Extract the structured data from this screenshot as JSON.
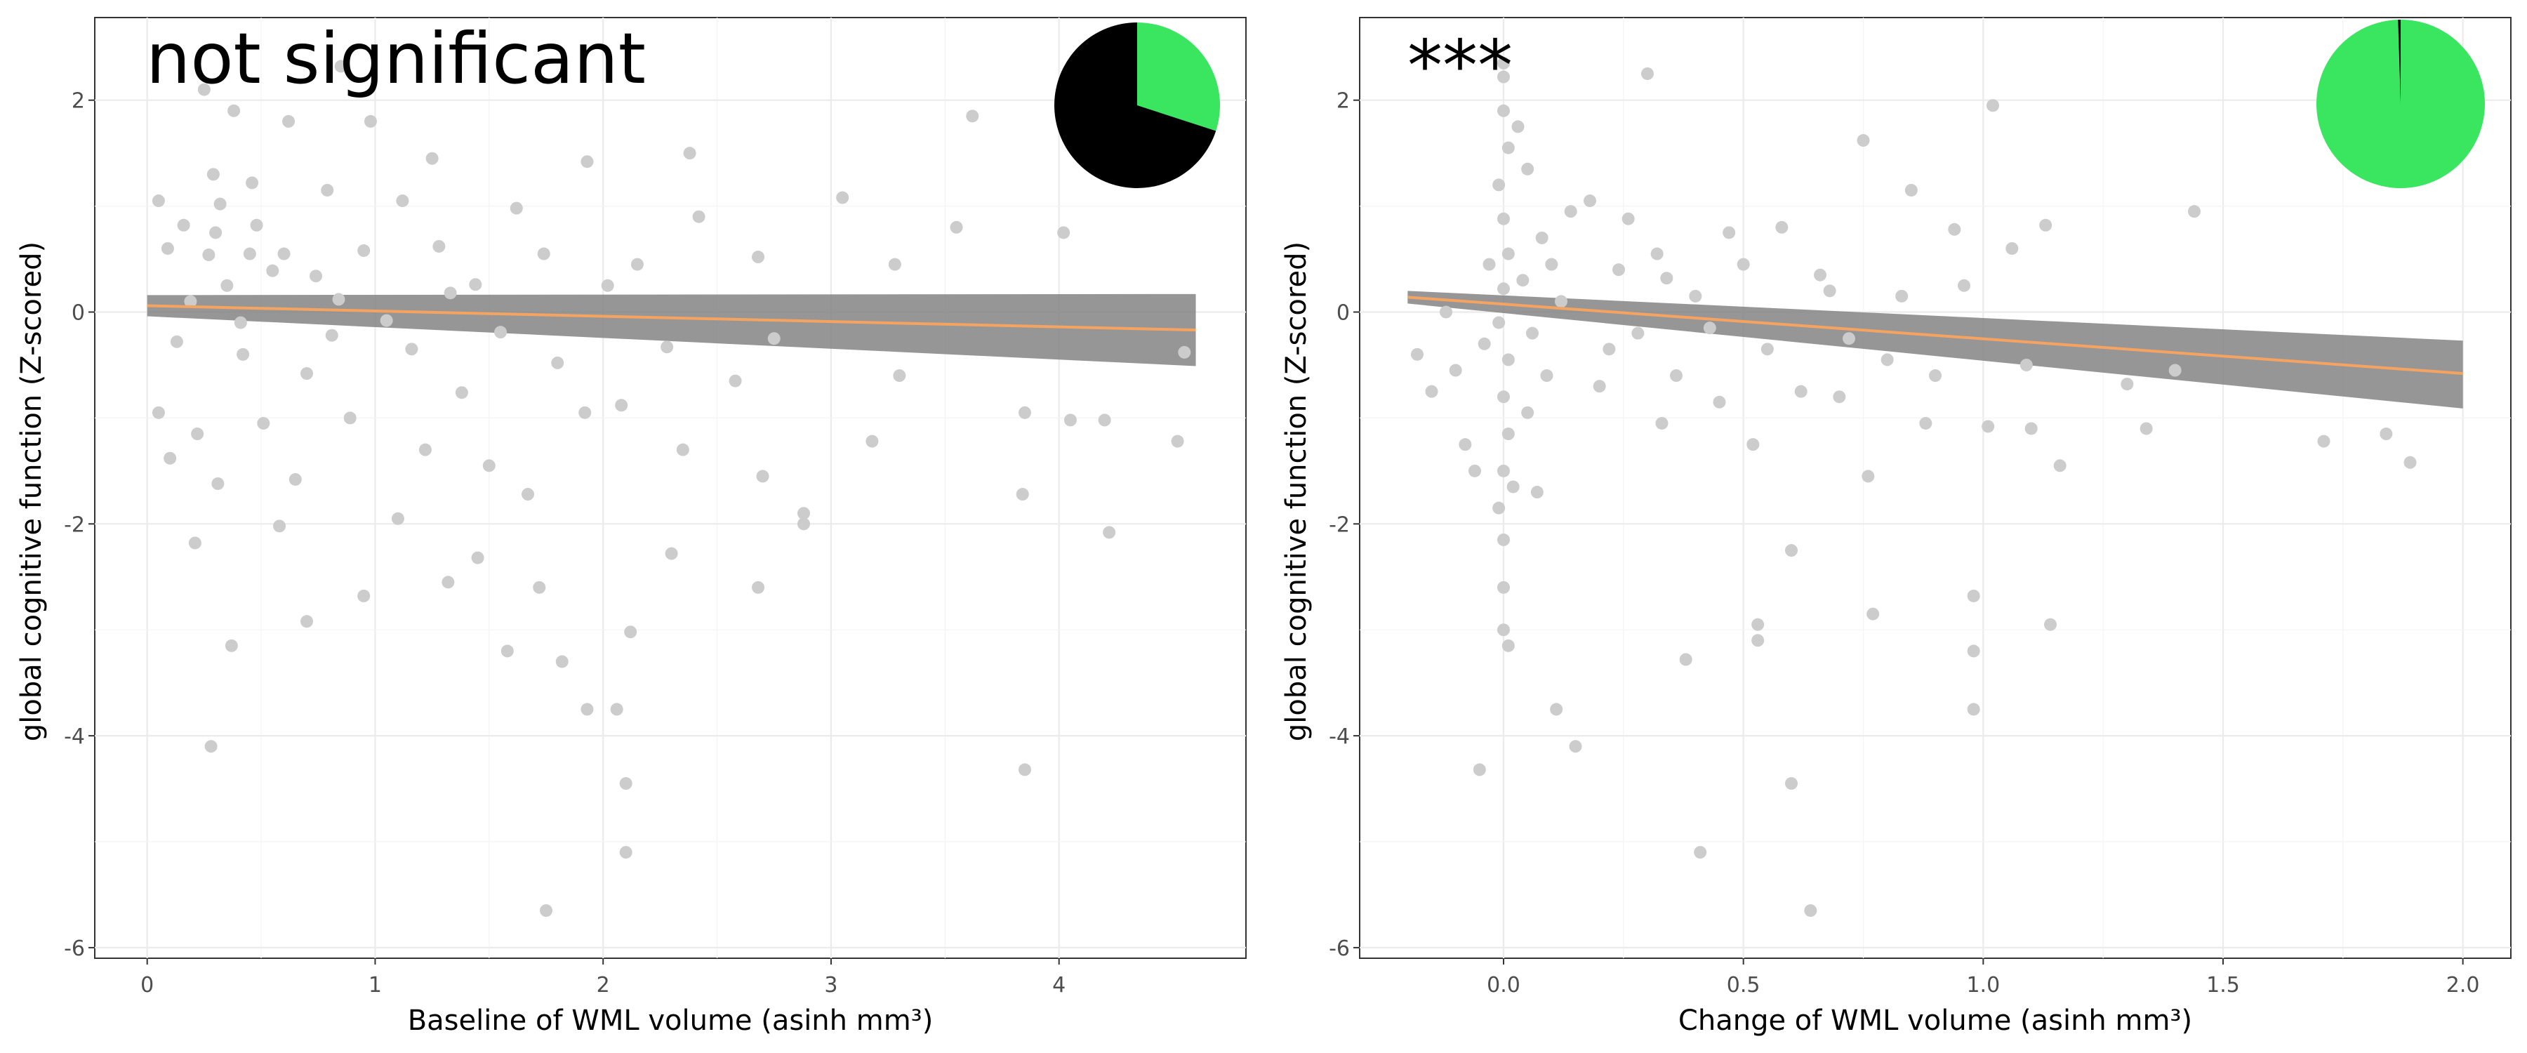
{
  "chart_data": [
    {
      "type": "scatter",
      "annotation": "not significant",
      "xlabel": "Baseline of WML volume (asinh mm³)",
      "ylabel": "global cognitive function (Z-scored)",
      "xlim": [
        -0.23,
        4.82
      ],
      "ylim": [
        -6.1,
        2.78
      ],
      "x_ticks": [
        0,
        1,
        2,
        3,
        4
      ],
      "x_tick_labels": [
        "0",
        "1",
        "2",
        "3",
        "4"
      ],
      "y_ticks": [
        -6,
        -4,
        -2,
        0,
        2
      ],
      "y_tick_labels": [
        "-6",
        "-4",
        "-2",
        "0",
        "2"
      ],
      "grid": true,
      "colors": {
        "points": "#cccccc",
        "fit_line": "#f4a460",
        "ribbon": "#7f7f7f",
        "pie_significant": "#3ae560",
        "pie_rest": "#000000"
      },
      "fit": {
        "x": [
          0,
          4.6
        ],
        "y": [
          0.06,
          -0.17
        ],
        "ci_lower": [
          -0.04,
          -0.51
        ],
        "ci_upper": [
          0.16,
          0.17
        ]
      },
      "pie": {
        "slices": [
          {
            "fraction": 0.3,
            "color": "#3ae560"
          },
          {
            "fraction": 0.7,
            "color": "#000000"
          }
        ]
      },
      "points": [
        [
          0.38,
          1.9
        ],
        [
          0.29,
          1.3
        ],
        [
          0.62,
          1.8
        ],
        [
          0.16,
          0.82
        ],
        [
          0.46,
          1.22
        ],
        [
          0.79,
          1.15
        ],
        [
          0.27,
          0.54
        ],
        [
          0.55,
          0.39
        ],
        [
          0.84,
          0.12
        ],
        [
          0.13,
          -0.28
        ],
        [
          0.42,
          -0.4
        ],
        [
          0.7,
          -0.58
        ],
        [
          0.22,
          -1.15
        ],
        [
          0.51,
          -1.05
        ],
        [
          0.89,
          -1.0
        ],
        [
          0.31,
          -1.62
        ],
        [
          0.65,
          -1.58
        ],
        [
          0.98,
          1.8
        ],
        [
          1.12,
          1.05
        ],
        [
          1.28,
          0.62
        ],
        [
          1.44,
          0.26
        ],
        [
          1.16,
          -0.35
        ],
        [
          1.38,
          -0.76
        ],
        [
          1.22,
          -1.3
        ],
        [
          1.5,
          -1.45
        ],
        [
          1.62,
          0.98
        ],
        [
          1.74,
          0.55
        ],
        [
          1.55,
          -0.19
        ],
        [
          1.8,
          -0.48
        ],
        [
          1.92,
          -0.95
        ],
        [
          1.67,
          -1.72
        ],
        [
          2.02,
          0.25
        ],
        [
          2.15,
          0.45
        ],
        [
          2.28,
          -0.33
        ],
        [
          2.08,
          -0.88
        ],
        [
          2.35,
          -1.3
        ],
        [
          2.42,
          0.9
        ],
        [
          1.93,
          1.42
        ],
        [
          2.58,
          -0.65
        ],
        [
          2.68,
          0.52
        ],
        [
          2.75,
          -0.25
        ],
        [
          2.7,
          -1.55
        ],
        [
          3.05,
          1.08
        ],
        [
          3.18,
          -1.22
        ],
        [
          3.28,
          0.45
        ],
        [
          3.3,
          -0.6
        ],
        [
          3.55,
          0.8
        ],
        [
          3.62,
          1.85
        ],
        [
          3.85,
          -0.95
        ],
        [
          3.84,
          -1.72
        ],
        [
          3.85,
          -4.32
        ],
        [
          4.02,
          0.75
        ],
        [
          4.05,
          -1.02
        ],
        [
          4.2,
          -1.02
        ],
        [
          4.22,
          -2.08
        ],
        [
          4.52,
          -1.22
        ],
        [
          4.55,
          -0.38
        ],
        [
          0.28,
          -4.1
        ],
        [
          0.37,
          -3.15
        ],
        [
          0.7,
          -2.92
        ],
        [
          1.75,
          -5.65
        ],
        [
          2.1,
          -5.1
        ],
        [
          2.1,
          -4.45
        ],
        [
          2.06,
          -3.75
        ],
        [
          2.12,
          -3.02
        ],
        [
          1.82,
          -3.3
        ],
        [
          1.93,
          -3.75
        ],
        [
          1.58,
          -3.2
        ],
        [
          0.95,
          -2.68
        ],
        [
          1.72,
          -2.6
        ],
        [
          2.88,
          -2.0
        ],
        [
          2.88,
          -1.9
        ],
        [
          2.68,
          -2.6
        ],
        [
          2.3,
          -2.28
        ],
        [
          1.45,
          -2.32
        ],
        [
          1.32,
          -2.55
        ],
        [
          0.21,
          -2.18
        ],
        [
          0.58,
          -2.02
        ],
        [
          1.1,
          -1.95
        ],
        [
          0.32,
          1.02
        ],
        [
          0.48,
          0.82
        ],
        [
          0.6,
          0.55
        ],
        [
          0.35,
          0.25
        ],
        [
          0.19,
          0.1
        ],
        [
          0.41,
          -0.1
        ],
        [
          0.74,
          0.34
        ],
        [
          0.95,
          0.58
        ],
        [
          1.05,
          -0.08
        ],
        [
          0.81,
          -0.22
        ],
        [
          1.33,
          0.18
        ],
        [
          0.25,
          2.1
        ],
        [
          0.85,
          2.32
        ],
        [
          0.05,
          1.05
        ],
        [
          0.09,
          0.6
        ],
        [
          0.05,
          -0.95
        ],
        [
          0.1,
          -1.38
        ],
        [
          1.25,
          1.45
        ],
        [
          2.38,
          1.5
        ],
        [
          0.45,
          0.55
        ],
        [
          0.3,
          0.75
        ]
      ]
    },
    {
      "type": "scatter",
      "annotation": "***",
      "xlabel": "Change of WML volume (asinh mm³)",
      "ylabel": "global cognitive function (Z-scored)",
      "xlim": [
        -0.3,
        2.1
      ],
      "ylim": [
        -6.1,
        2.78
      ],
      "x_ticks": [
        0.0,
        0.5,
        1.0,
        1.5,
        2.0
      ],
      "x_tick_labels": [
        "0.0",
        "0.5",
        "1.0",
        "1.5",
        "2.0"
      ],
      "y_ticks": [
        -6,
        -4,
        -2,
        0,
        2
      ],
      "y_tick_labels": [
        "-6",
        "-4",
        "-2",
        "0",
        "2"
      ],
      "grid": true,
      "colors": {
        "points": "#cccccc",
        "fit_line": "#f4a460",
        "ribbon": "#7f7f7f",
        "pie_significant": "#3ae560",
        "pie_rest": "#000000"
      },
      "fit": {
        "x": [
          -0.2,
          2.0
        ],
        "y": [
          0.14,
          -0.58
        ],
        "ci_lower": [
          0.08,
          -0.91
        ],
        "ci_upper": [
          0.2,
          -0.27
        ]
      },
      "pie": {
        "slices": [
          {
            "fraction": 0.995,
            "color": "#3ae560"
          },
          {
            "fraction": 0.005,
            "color": "#000000"
          }
        ]
      },
      "points": [
        [
          0.0,
          2.35
        ],
        [
          0.0,
          2.22
        ],
        [
          0.0,
          1.9
        ],
        [
          0.01,
          1.55
        ],
        [
          -0.01,
          1.2
        ],
        [
          0.0,
          0.88
        ],
        [
          0.01,
          0.55
        ],
        [
          0.0,
          0.22
        ],
        [
          -0.01,
          -0.1
        ],
        [
          0.01,
          -0.45
        ],
        [
          0.0,
          -0.8
        ],
        [
          0.01,
          -1.15
        ],
        [
          0.0,
          -1.5
        ],
        [
          -0.01,
          -1.85
        ],
        [
          0.0,
          -2.15
        ],
        [
          0.0,
          -2.6
        ],
        [
          0.0,
          -3.0
        ],
        [
          0.01,
          -3.15
        ],
        [
          -0.05,
          -4.32
        ],
        [
          0.11,
          -3.75
        ],
        [
          0.15,
          -4.1
        ],
        [
          0.05,
          1.35
        ],
        [
          0.08,
          0.7
        ],
        [
          0.12,
          0.1
        ],
        [
          0.09,
          -0.6
        ],
        [
          0.18,
          1.05
        ],
        [
          0.22,
          -0.35
        ],
        [
          0.26,
          0.88
        ],
        [
          0.3,
          2.25
        ],
        [
          0.33,
          -1.05
        ],
        [
          0.34,
          0.32
        ],
        [
          0.38,
          -3.28
        ],
        [
          0.41,
          -5.1
        ],
        [
          0.43,
          -0.15
        ],
        [
          0.47,
          0.75
        ],
        [
          0.52,
          -1.25
        ],
        [
          0.53,
          -2.95
        ],
        [
          0.53,
          -3.1
        ],
        [
          0.58,
          0.8
        ],
        [
          0.6,
          -2.25
        ],
        [
          0.6,
          -4.45
        ],
        [
          0.64,
          -5.65
        ],
        [
          0.66,
          0.35
        ],
        [
          0.7,
          -0.8
        ],
        [
          0.75,
          1.62
        ],
        [
          0.76,
          -1.55
        ],
        [
          0.77,
          -2.85
        ],
        [
          0.8,
          -0.45
        ],
        [
          0.85,
          1.15
        ],
        [
          0.88,
          -1.05
        ],
        [
          0.94,
          0.78
        ],
        [
          0.98,
          -2.68
        ],
        [
          0.98,
          -3.2
        ],
        [
          0.98,
          -3.75
        ],
        [
          1.01,
          -1.08
        ],
        [
          1.02,
          1.95
        ],
        [
          1.06,
          0.6
        ],
        [
          1.09,
          -0.5
        ],
        [
          1.1,
          -1.1
        ],
        [
          1.14,
          -2.95
        ],
        [
          1.16,
          -1.45
        ],
        [
          1.13,
          0.82
        ],
        [
          1.3,
          -0.68
        ],
        [
          1.34,
          -1.1
        ],
        [
          1.4,
          -0.55
        ],
        [
          1.44,
          0.95
        ],
        [
          1.71,
          -1.22
        ],
        [
          1.84,
          -1.15
        ],
        [
          1.89,
          -1.42
        ],
        [
          -0.1,
          -0.55
        ],
        [
          -0.08,
          -1.25
        ],
        [
          -0.06,
          -1.5
        ],
        [
          -0.03,
          0.45
        ],
        [
          -0.04,
          -0.3
        ],
        [
          0.03,
          1.75
        ],
        [
          0.05,
          -0.95
        ],
        [
          0.07,
          -1.7
        ],
        [
          0.1,
          0.45
        ],
        [
          0.14,
          0.95
        ],
        [
          0.2,
          -0.7
        ],
        [
          0.24,
          0.4
        ],
        [
          0.28,
          -0.2
        ],
        [
          0.32,
          0.55
        ],
        [
          0.36,
          -0.6
        ],
        [
          0.4,
          0.15
        ],
        [
          0.45,
          -0.85
        ],
        [
          0.5,
          0.45
        ],
        [
          0.55,
          -0.35
        ],
        [
          0.62,
          -0.75
        ],
        [
          0.68,
          0.2
        ],
        [
          0.72,
          -0.25
        ],
        [
          0.83,
          0.15
        ],
        [
          0.9,
          -0.6
        ],
        [
          0.96,
          0.25
        ],
        [
          -0.18,
          -0.4
        ],
        [
          -0.15,
          -0.75
        ],
        [
          -0.12,
          0.0
        ],
        [
          0.02,
          -1.65
        ],
        [
          0.06,
          -0.2
        ],
        [
          0.04,
          0.3
        ]
      ]
    }
  ]
}
